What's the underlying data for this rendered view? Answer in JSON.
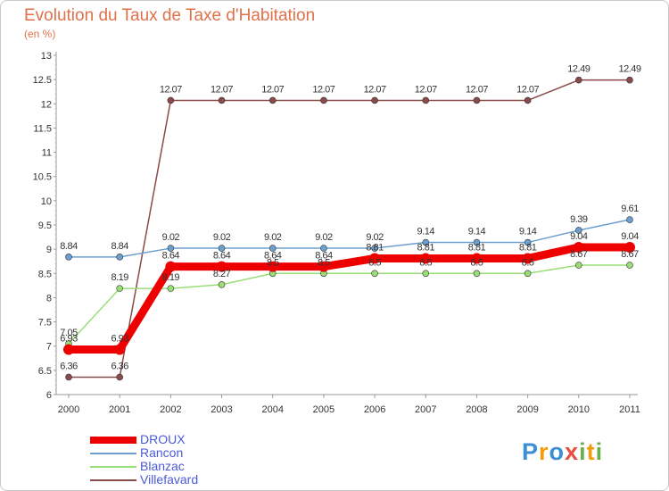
{
  "chart_data": {
    "type": "line",
    "title": "Evolution du Taux de Taxe d'Habitation",
    "subtitle": "(en %)",
    "xlabel": "",
    "ylabel": "",
    "categories": [
      "2000",
      "2001",
      "2002",
      "2003",
      "2004",
      "2005",
      "2006",
      "2007",
      "2008",
      "2009",
      "2010",
      "2011"
    ],
    "ylim": [
      6,
      13
    ],
    "yticks": [
      "6",
      "6.5",
      "7",
      "7.5",
      "8",
      "8.5",
      "9",
      "9.5",
      "10",
      "10.5",
      "11",
      "11.5",
      "12",
      "12.5",
      "13"
    ],
    "series": [
      {
        "name": "DROUX",
        "color": "#ee0000",
        "values": [
          6.93,
          6.93,
          8.64,
          8.64,
          8.64,
          8.64,
          8.81,
          8.81,
          8.81,
          8.81,
          9.04,
          9.04
        ],
        "labels": [
          "6.93",
          "6.93",
          "8.64",
          "8.64",
          "8.64",
          "8.64",
          "8.81",
          "8.81",
          "8.81",
          "8.81",
          "9.04",
          "9.04"
        ]
      },
      {
        "name": "Rancon",
        "color": "#6c9fd0",
        "values": [
          8.84,
          8.84,
          9.02,
          9.02,
          9.02,
          9.02,
          9.02,
          9.14,
          9.14,
          9.14,
          9.39,
          9.61
        ],
        "labels": [
          "8.84",
          "8.84",
          "9.02",
          "9.02",
          "9.02",
          "9.02",
          "9.02",
          "9.14",
          "9.14",
          "9.14",
          "9.39",
          "9.61"
        ]
      },
      {
        "name": "Blanzac",
        "color": "#99dd77",
        "values": [
          7.05,
          8.19,
          8.19,
          8.27,
          8.5,
          8.5,
          8.5,
          8.5,
          8.5,
          8.5,
          8.67,
          8.67
        ],
        "labels": [
          "7.05",
          "8.19",
          "8.19",
          "8.27",
          "8.5",
          "8.5",
          "8.5",
          "8.5",
          "8.5",
          "8.5",
          "8.67",
          "8.67"
        ]
      },
      {
        "name": "Villefavard",
        "color": "#8a4a4a",
        "values": [
          6.36,
          6.36,
          12.07,
          12.07,
          12.07,
          12.07,
          12.07,
          12.07,
          12.07,
          12.07,
          12.49,
          12.49
        ],
        "labels": [
          "6.36",
          "6.36",
          "12.07",
          "12.07",
          "12.07",
          "12.07",
          "12.07",
          "12.07",
          "12.07",
          "12.07",
          "12.49",
          "12.49"
        ]
      }
    ],
    "legend_position": "bottom-left",
    "grid": false
  },
  "logo": {
    "letters": [
      "P",
      "r",
      "o",
      "x",
      "i",
      "t",
      "i"
    ],
    "colors": [
      "#3b8fd4",
      "#f39c12",
      "#3b8fd4",
      "#e74c3c",
      "#6ab04c",
      "#f39c12",
      "#6ab04c"
    ]
  }
}
